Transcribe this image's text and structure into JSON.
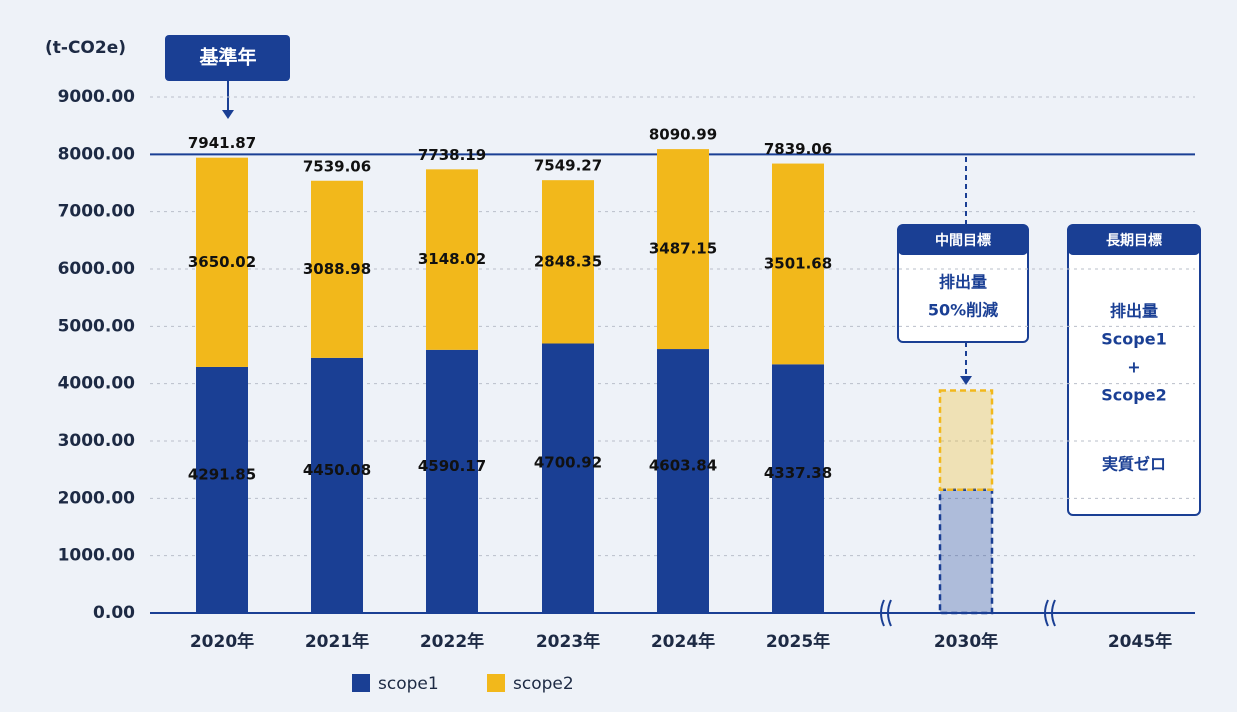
{
  "chart_data": {
    "type": "stacked_bar",
    "y_label": "(t-CO2e)",
    "categories": [
      "2020年",
      "2021年",
      "2022年",
      "2023年",
      "2024年",
      "2025年",
      "2030年",
      "2045年"
    ],
    "series": [
      {
        "name": "scope1",
        "color": "#1a3f94",
        "values": [
          4291.85,
          4450.08,
          4590.17,
          4700.92,
          4603.84,
          4337.38,
          2150,
          null
        ]
      },
      {
        "name": "scope2",
        "color": "#f2b81b",
        "values": [
          3650.02,
          3088.98,
          3148.02,
          2848.35,
          3487.15,
          3501.68,
          1730,
          null
        ]
      }
    ],
    "dashed": [
      false,
      false,
      false,
      false,
      false,
      false,
      true,
      false
    ],
    "totals": [
      7941.87,
      7539.06,
      7738.19,
      7549.27,
      8090.99,
      7839.06,
      null,
      null
    ],
    "ylim": [
      0,
      9000
    ],
    "yticks": [
      {
        "value": 0,
        "label": "0.00"
      },
      {
        "value": 1000,
        "label": "1000.00"
      },
      {
        "value": 2000,
        "label": "2000.00"
      },
      {
        "value": 3000,
        "label": "3000.00"
      },
      {
        "value": 4000,
        "label": "4000.00"
      },
      {
        "value": 5000,
        "label": "5000.00"
      },
      {
        "value": 6000,
        "label": "6000.00"
      },
      {
        "value": 7000,
        "label": "7000.00"
      },
      {
        "value": 8000,
        "label": "8000.00"
      },
      {
        "value": 9000,
        "label": "9000.00"
      }
    ],
    "grid": true,
    "reference_line": 8000,
    "annotations": {
      "base_year": "基準年",
      "mid_target": {
        "title": "中間目標",
        "lines": [
          "排出量",
          "50%削減"
        ]
      },
      "long_target": {
        "title": "長期目標",
        "lines": [
          "排出量",
          "Scope1",
          "+",
          "Scope2",
          "実質ゼロ"
        ]
      }
    }
  }
}
